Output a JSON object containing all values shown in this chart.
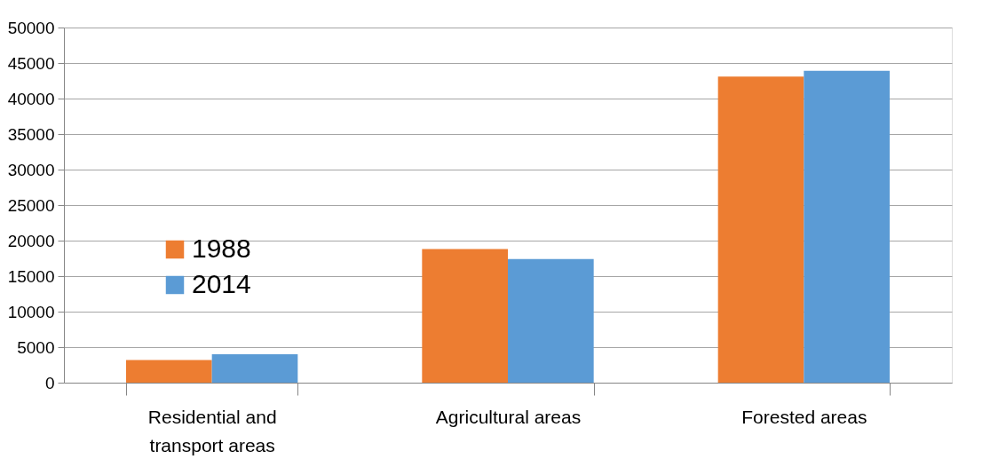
{
  "chart_data": {
    "type": "bar",
    "categories": [
      "Residential and transport areas",
      "Agricultural areas",
      "Forested areas"
    ],
    "series": [
      {
        "name": "1988",
        "color": "#ed7d31",
        "values": [
          3200,
          18800,
          43100
        ]
      },
      {
        "name": "2014",
        "color": "#5b9bd5",
        "values": [
          4000,
          17400,
          43900
        ]
      }
    ],
    "ylim": [
      0,
      50000
    ],
    "yticks": [
      0,
      5000,
      10000,
      15000,
      20000,
      25000,
      30000,
      35000,
      40000,
      45000,
      50000
    ],
    "grid": "y",
    "legend": "left"
  }
}
